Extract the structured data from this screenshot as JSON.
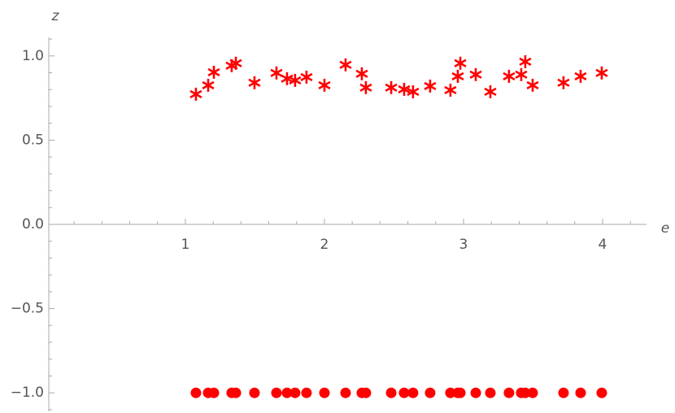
{
  "chart_data": {
    "type": "scatter",
    "xlabel": "e",
    "ylabel": "z",
    "x": [
      1.076,
      1.164,
      1.205,
      1.333,
      1.363,
      1.497,
      1.655,
      1.731,
      1.789,
      1.871,
      2.0,
      2.152,
      2.269,
      2.298,
      2.48,
      2.573,
      2.637,
      2.76,
      2.906,
      2.959,
      2.977,
      3.088,
      3.193,
      3.327,
      3.415,
      3.444,
      3.497,
      3.719,
      3.842,
      3.994
    ],
    "series": [
      {
        "color": "#ff0000",
        "marker": "star",
        "values": [
          0.773,
          0.826,
          0.903,
          0.942,
          0.957,
          0.841,
          0.899,
          0.865,
          0.855,
          0.874,
          0.826,
          0.947,
          0.894,
          0.812,
          0.812,
          0.802,
          0.787,
          0.821,
          0.797,
          0.879,
          0.957,
          0.889,
          0.787,
          0.879,
          0.889,
          0.966,
          0.826,
          0.841,
          0.879,
          0.899
        ]
      },
      {
        "color": "#ff0000",
        "marker": "circle",
        "values": [
          -1,
          -1,
          -1,
          -1,
          -1,
          -1,
          -1,
          -1,
          -1,
          -1,
          -1,
          -1,
          -1,
          -1,
          -1,
          -1,
          -1,
          -1,
          -1,
          -1,
          -1,
          -1,
          -1,
          -1,
          -1,
          -1,
          -1,
          -1,
          -1,
          -1
        ]
      }
    ],
    "xlim": [
      0.018,
      4.316
    ],
    "ylim": [
      -1.11,
      1.11
    ],
    "xticks": [
      1,
      2,
      3,
      4
    ],
    "yticks": [
      {
        "value": 1,
        "label": "1.0"
      },
      {
        "value": 0.5,
        "label": "0.5"
      },
      {
        "value": 0,
        "label": "0.0"
      },
      {
        "value": -0.5,
        "label": "−0.5"
      },
      {
        "value": -1,
        "label": "−1.0"
      }
    ],
    "xminor_ticks": [
      0.2,
      0.4,
      0.6,
      0.8,
      1.2,
      1.4,
      1.6,
      1.8,
      2.2,
      2.4,
      2.6,
      2.8,
      3.2,
      3.4,
      3.6,
      3.8,
      4.2
    ],
    "yminor_ticks": [
      1.1,
      0.9,
      0.8,
      0.7,
      0.6,
      0.4,
      0.3,
      0.2,
      0.1,
      -0.1,
      -0.2,
      -0.3,
      -0.4,
      -0.6,
      -0.7,
      -0.8,
      -0.9,
      -1.1
    ]
  }
}
